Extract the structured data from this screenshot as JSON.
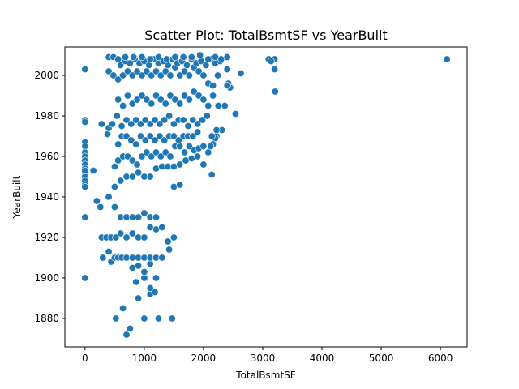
{
  "chart_data": {
    "type": "scatter",
    "title": "Scatter Plot: TotalBsmtSF vs YearBuilt",
    "xlabel": "TotalBsmtSF",
    "ylabel": "YearBuilt",
    "xlim": [
      -340,
      6450
    ],
    "ylim": [
      1866,
      2014
    ],
    "xticks": [
      0,
      1000,
      2000,
      3000,
      4000,
      5000,
      6000
    ],
    "yticks": [
      1880,
      1900,
      1920,
      1940,
      1960,
      1980,
      2000
    ],
    "grid": false,
    "legend": "none",
    "color": "#1f77b4",
    "series": [
      {
        "x": [
          0,
          0,
          0,
          0,
          0,
          0,
          0,
          0,
          0,
          0,
          0,
          0,
          0,
          0,
          0,
          0,
          0,
          0,
          6110,
          3200,
          3210,
          3200,
          3100,
          3140,
          2630,
          2540,
          2420,
          2400,
          2450,
          2310,
          2220,
          2200,
          2160,
          2120,
          2140,
          520,
          640,
          700,
          760,
          900,
          1000,
          1100,
          1240,
          1470,
          1020,
          860,
          1000,
          1100,
          1180,
          800,
          900,
          1000,
          1100,
          1200,
          1000,
          1100,
          300,
          400,
          440,
          500,
          560,
          620,
          700,
          800,
          900,
          1000,
          1100,
          1200,
          1300,
          1420,
          1500,
          280,
          360,
          440,
          520,
          600,
          700,
          800,
          900,
          1000,
          1100,
          1200,
          200,
          260,
          400,
          500,
          600,
          700,
          800,
          900,
          1000,
          1100,
          1200,
          1300,
          1400,
          1500,
          1600,
          500,
          600,
          700,
          800,
          900,
          1000,
          1100,
          1200,
          1300,
          1400,
          1500,
          1600,
          1700,
          1800,
          1900,
          2000,
          140,
          500,
          560,
          640,
          720,
          800,
          880,
          960,
          1040,
          1120,
          1200,
          1280,
          1360,
          1440,
          1520,
          1600,
          1680,
          1760,
          1840,
          1920,
          2000,
          2080,
          280,
          380,
          560,
          620,
          700,
          780,
          860,
          940,
          1020,
          1100,
          1180,
          1260,
          1340,
          1420,
          1500,
          1580,
          1660,
          1740,
          1820,
          1900,
          400,
          460,
          540,
          620,
          700,
          780,
          860,
          940,
          1020,
          1100,
          1180,
          1260,
          1340,
          1420,
          1500,
          1580,
          1660,
          1740,
          1820,
          1900,
          1980,
          2060,
          2140,
          2220,
          560,
          640,
          720,
          800,
          880,
          960,
          1040,
          1120,
          1200,
          1280,
          1360,
          1440,
          1520,
          1600,
          1680,
          1760,
          1840,
          1920,
          2000,
          2080,
          2160,
          2250,
          2360,
          400,
          480,
          560,
          640,
          720,
          800,
          880,
          960,
          1040,
          1120,
          1200,
          1280,
          1360,
          1440,
          1520,
          1600,
          1680,
          1760,
          1840,
          1920,
          2000,
          2080,
          2160,
          2240,
          2400,
          2630,
          600,
          680,
          760,
          840,
          920,
          1000,
          1080,
          1160,
          1240,
          1320,
          1400,
          1480,
          1560,
          1640,
          1720,
          1800,
          1880,
          1960,
          2040,
          2120,
          2200,
          2280,
          400,
          480,
          560,
          680,
          820,
          960,
          1100,
          1240,
          1380,
          1520,
          1660,
          1800,
          1940,
          2080,
          2200,
          2300,
          2400
        ],
        "y": [
          2003,
          1978,
          1977,
          1967,
          1965,
          1962,
          1960,
          1958,
          1956,
          1954,
          1952,
          1950,
          1948,
          1946,
          1953,
          1945,
          1930,
          1900,
          2008,
          2003,
          1992,
          2008,
          2008,
          2007,
          2001,
          1981,
          1996,
          2003,
          1994,
          1973,
          1970,
          1969,
          1966,
          1965,
          1951,
          1880,
          1885,
          1872,
          1875,
          1890,
          1880,
          1892,
          1880,
          1880,
          1900,
          1898,
          1900,
          1895,
          1893,
          1905,
          1906,
          1903,
          1907,
          1900,
          1910,
          1910,
          1910,
          1913,
          1908,
          1910,
          1910,
          1910,
          1910,
          1910,
          1910,
          1910,
          1910,
          1910,
          1910,
          1914,
          1920,
          1920,
          1920,
          1920,
          1920,
          1922,
          1920,
          1922,
          1920,
          1920,
          1925,
          1924,
          1938,
          1935,
          1940,
          1935,
          1930,
          1930,
          1930,
          1930,
          1932,
          1930,
          1930,
          1925,
          1918,
          1945,
          1946,
          1945,
          1948,
          1950,
          1950,
          1952,
          1950,
          1950,
          1954,
          1955,
          1955,
          1955,
          1956,
          1958,
          1959,
          1960,
          1956,
          1953,
          1955,
          1958,
          1960,
          1960,
          1958,
          1956,
          1960,
          1962,
          1960,
          1962,
          1960,
          1962,
          1960,
          1965,
          1965,
          1962,
          1965,
          1963,
          1964,
          1965,
          1962,
          1976,
          1971,
          1966,
          1970,
          1970,
          1968,
          1966,
          1970,
          1968,
          1970,
          1968,
          1970,
          1968,
          1970,
          1970,
          1968,
          1970,
          1970,
          1970,
          1972,
          1974,
          1976,
          1980,
          1975,
          1978,
          1976,
          1978,
          1976,
          1978,
          1976,
          1978,
          1976,
          1978,
          1980,
          1976,
          1978,
          1978,
          1975,
          1978,
          1976,
          1978,
          1980,
          1970,
          1973,
          1988,
          1985,
          1990,
          1986,
          1988,
          1990,
          1988,
          1986,
          1990,
          1988,
          1986,
          1990,
          1988,
          1986,
          1990,
          1988,
          1992,
          1990,
          1988,
          1985,
          1990,
          1985,
          1985,
          2002,
          2000,
          1998,
          2000,
          2002,
          2000,
          2002,
          2000,
          2002,
          2000,
          2002,
          2000,
          2002,
          2000,
          2004,
          2000,
          2002,
          2000,
          2004,
          2002,
          2000,
          1996,
          1995,
          2000,
          1995,
          2001,
          2005,
          2007,
          2006,
          2008,
          2006,
          2007,
          2005,
          2008,
          2006,
          2007,
          2005,
          2008,
          2006,
          2007,
          2005,
          2008,
          2006,
          2007,
          2005,
          2008,
          2006,
          2007,
          2009,
          2009,
          2008,
          2009,
          2009,
          2009,
          2008,
          2009,
          2008,
          2009,
          2009,
          2009,
          2010,
          2008,
          2009,
          2008,
          2009
        ]
      }
    ]
  }
}
